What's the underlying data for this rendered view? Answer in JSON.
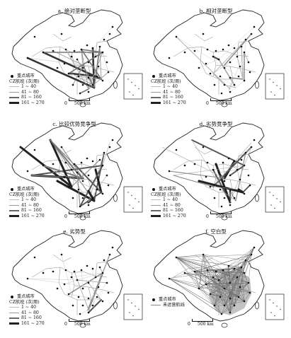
{
  "panels": [
    {
      "id": "a",
      "title": "a. 绝对垄断型",
      "style": "gray-mid",
      "n": 34
    },
    {
      "id": "b",
      "title": "b. 相对垄断型",
      "style": "gray-light",
      "n": 26
    },
    {
      "id": "c",
      "title": "c. 比较优势竞争型",
      "style": "dark",
      "n": 30
    },
    {
      "id": "d",
      "title": "d. 劣势竞争型",
      "style": "dark-spread",
      "n": 30
    },
    {
      "id": "e",
      "title": "e. 劣势型",
      "style": "gray-light",
      "n": 24
    },
    {
      "id": "f",
      "title": "f. 空白型",
      "style": "dense",
      "n": 220
    }
  ],
  "legend": {
    "city_label": "重点城市",
    "flights_label": "CZ航班 (次/周)",
    "classes": [
      {
        "label": "1 ~ 40",
        "width": 0.6,
        "color": "#bbbbbb"
      },
      {
        "label": "41 ~ 80",
        "width": 1.0,
        "color": "#999999"
      },
      {
        "label": "81 ~ 160",
        "width": 1.6,
        "color": "#666666"
      },
      {
        "label": "161 ~ 270",
        "width": 2.6,
        "color": "#222222"
      }
    ],
    "unserved_label": "未运营航线"
  },
  "scale": {
    "zero": "0",
    "dist": "500 km"
  }
}
